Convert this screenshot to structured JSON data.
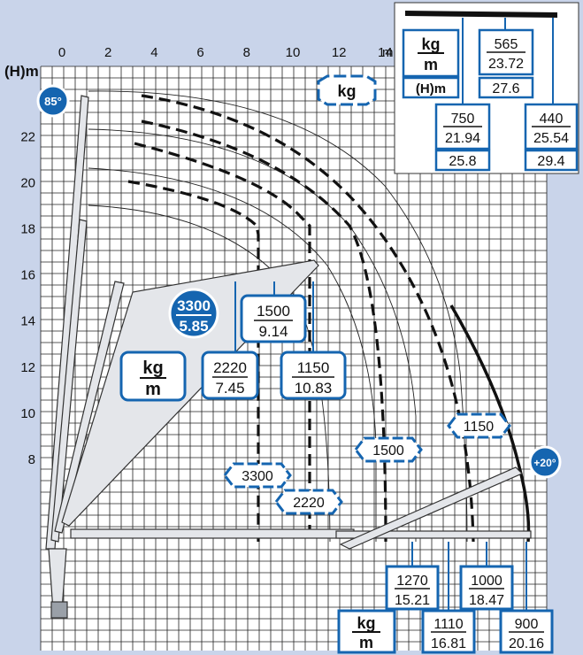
{
  "axes": {
    "x_unit": "m",
    "y_unit": "(H)m",
    "x_ticks": [
      "0",
      "2",
      "4",
      "6",
      "8",
      "10",
      "12",
      "14"
    ],
    "y_ticks": [
      "8",
      "10",
      "12",
      "14",
      "16",
      "18",
      "20",
      "22"
    ]
  },
  "angles": {
    "max": "85°",
    "min": "+20°"
  },
  "unit_tag": "kg",
  "unit_block": {
    "kg": "kg",
    "m": "m"
  },
  "inset": {
    "unit_kg": "kg",
    "unit_m": "m",
    "height_label": "(H)m",
    "entries": [
      {
        "kg": "565",
        "m": "23.72",
        "h": "27.6"
      },
      {
        "kg": "750",
        "m": "21.94",
        "h": "25.8"
      },
      {
        "kg": "440",
        "m": "25.54",
        "h": "29.4"
      }
    ]
  },
  "highlight_load": {
    "kg": "3300",
    "m": "5.85"
  },
  "loads_mid": [
    {
      "kg": "1500",
      "m": "9.14"
    },
    {
      "kg": "2220",
      "m": "7.45"
    },
    {
      "kg": "1150",
      "m": "10.83"
    }
  ],
  "curve_labels": [
    "3300",
    "2220",
    "1500",
    "1150"
  ],
  "loads_bottom": [
    {
      "kg": "1270",
      "m": "15.21"
    },
    {
      "kg": "1000",
      "m": "18.47"
    },
    {
      "kg": "1110",
      "m": "16.81"
    },
    {
      "kg": "900",
      "m": "20.16"
    }
  ],
  "colors": {
    "background": "#c9d4ea",
    "grid_bg": "#ffffff",
    "accent": "#1565b0",
    "ink": "#111111"
  }
}
